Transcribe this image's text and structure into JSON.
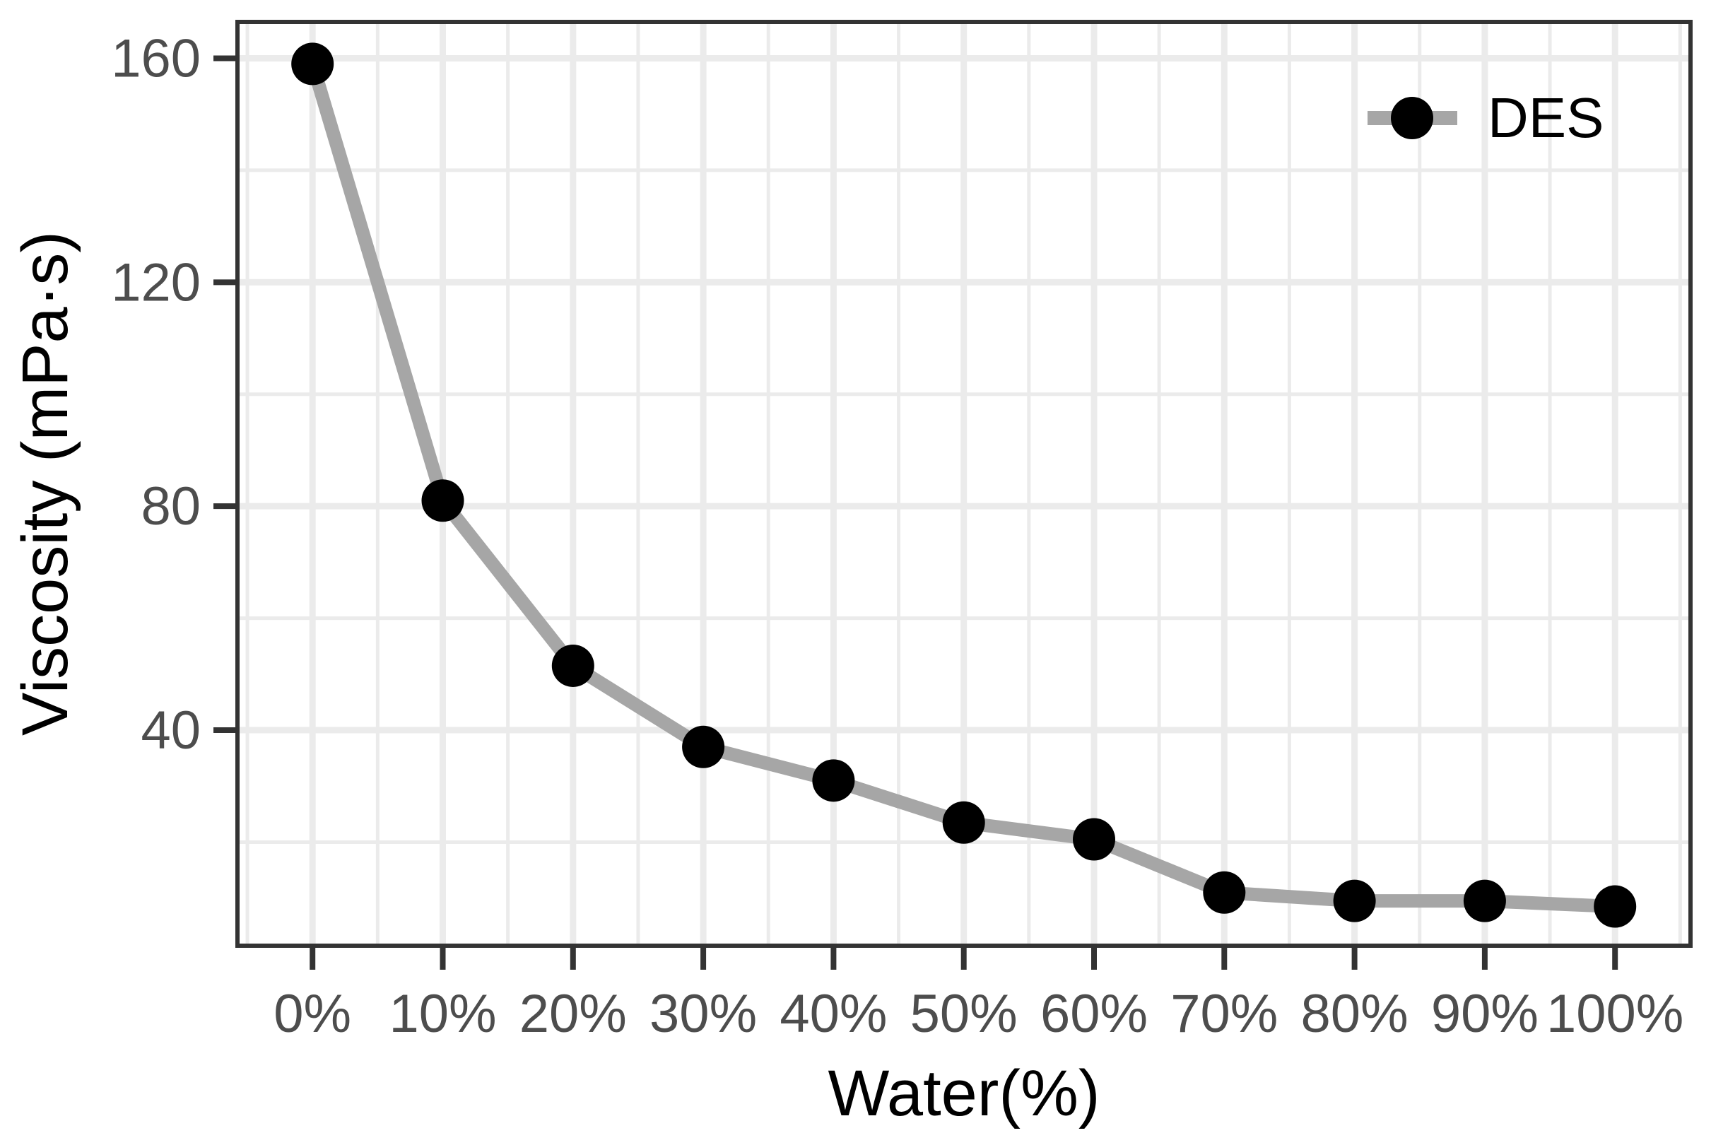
{
  "chart_data": {
    "type": "line",
    "title": "",
    "xlabel": "Water(%)",
    "ylabel": "Viscosity (mPa·s)",
    "categories": [
      "0%",
      "10%",
      "20%",
      "30%",
      "40%",
      "50%",
      "60%",
      "70%",
      "80%",
      "90%",
      "100%"
    ],
    "x_values_percent": [
      0,
      10,
      20,
      30,
      40,
      50,
      60,
      70,
      80,
      90,
      100
    ],
    "series": [
      {
        "name": "DES",
        "values": [
          159,
          81,
          51.5,
          37,
          31,
          23.5,
          20.5,
          11,
          9.5,
          9.5,
          8.5
        ],
        "line_color": "#a6a6a6",
        "marker_color": "#000000",
        "marker": "circle"
      }
    ],
    "y_ticks": [
      40,
      80,
      120,
      160
    ],
    "ylim": [
      1.5,
      166.5
    ],
    "grid": true,
    "legend": {
      "position": "top-right-inside",
      "entries": [
        "DES"
      ]
    },
    "style": {
      "grid_color": "#ebebeb",
      "panel_border_color": "#333333",
      "tick_color": "#333333",
      "tick_label_color": "#4d4d4d",
      "axis_title_color": "#000000",
      "background_color": "#ffffff"
    }
  }
}
